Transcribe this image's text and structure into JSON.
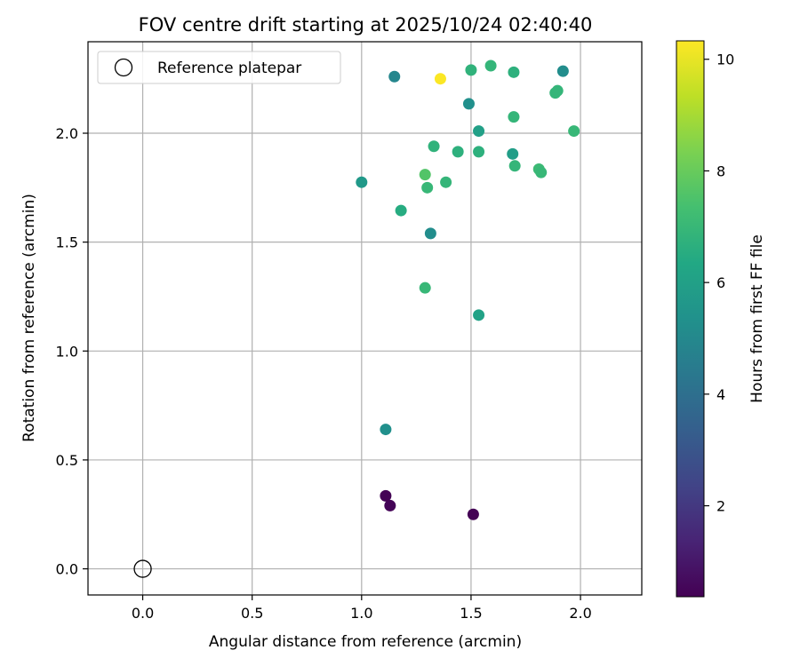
{
  "chart_data": {
    "type": "scatter",
    "title": "FOV centre drift starting at 2025/10/24 02:40:40",
    "xlabel": "Angular distance from reference (arcmin)",
    "ylabel": "Rotation from reference (arcmin)",
    "xlim": [
      -0.25,
      2.28
    ],
    "ylim": [
      -0.12,
      2.42
    ],
    "xticks": [
      0.0,
      0.5,
      1.0,
      1.5,
      2.0
    ],
    "xtick_labels": [
      "0.0",
      "0.5",
      "1.0",
      "1.5",
      "2.0"
    ],
    "yticks": [
      0.0,
      0.5,
      1.0,
      1.5,
      2.0
    ],
    "ytick_labels": [
      "0.0",
      "0.5",
      "1.0",
      "1.5",
      "2.0"
    ],
    "grid": true,
    "legend": {
      "position": "top-left",
      "entries": [
        {
          "label": "Reference platepar",
          "marker": "open-circle"
        }
      ]
    },
    "reference_point": {
      "x": 0.0,
      "y": 0.0
    },
    "colorbar": {
      "label": "Hours from first FF file",
      "colormap": "viridis",
      "range": [
        0.37,
        10.33
      ],
      "ticks": [
        2,
        4,
        6,
        8,
        10
      ],
      "tick_labels": [
        "2",
        "4",
        "6",
        "8",
        "10"
      ]
    },
    "points": [
      {
        "x": 1.11,
        "y": 0.335,
        "hours": 0.4
      },
      {
        "x": 1.13,
        "y": 0.29,
        "hours": 0.45
      },
      {
        "x": 1.51,
        "y": 0.25,
        "hours": 0.4
      },
      {
        "x": 1.11,
        "y": 0.64,
        "hours": 5.3
      },
      {
        "x": 1.0,
        "y": 1.775,
        "hours": 5.7
      },
      {
        "x": 1.15,
        "y": 2.26,
        "hours": 4.9
      },
      {
        "x": 1.18,
        "y": 1.645,
        "hours": 6.5
      },
      {
        "x": 1.29,
        "y": 1.81,
        "hours": 7.6
      },
      {
        "x": 1.29,
        "y": 1.29,
        "hours": 7.0
      },
      {
        "x": 1.3,
        "y": 1.75,
        "hours": 7.0
      },
      {
        "x": 1.315,
        "y": 1.54,
        "hours": 5.2
      },
      {
        "x": 1.33,
        "y": 1.94,
        "hours": 6.8
      },
      {
        "x": 1.36,
        "y": 2.25,
        "hours": 10.3
      },
      {
        "x": 1.385,
        "y": 1.775,
        "hours": 6.9
      },
      {
        "x": 1.44,
        "y": 1.915,
        "hours": 6.7
      },
      {
        "x": 1.49,
        "y": 2.135,
        "hours": 5.3
      },
      {
        "x": 1.5,
        "y": 2.29,
        "hours": 6.8
      },
      {
        "x": 1.535,
        "y": 1.915,
        "hours": 6.7
      },
      {
        "x": 1.535,
        "y": 2.01,
        "hours": 6.0
      },
      {
        "x": 1.535,
        "y": 1.165,
        "hours": 6.1
      },
      {
        "x": 1.59,
        "y": 2.31,
        "hours": 6.9
      },
      {
        "x": 1.69,
        "y": 1.905,
        "hours": 5.9
      },
      {
        "x": 1.695,
        "y": 2.28,
        "hours": 6.7
      },
      {
        "x": 1.695,
        "y": 2.075,
        "hours": 6.9
      },
      {
        "x": 1.7,
        "y": 1.85,
        "hours": 6.9
      },
      {
        "x": 1.81,
        "y": 1.835,
        "hours": 7.1
      },
      {
        "x": 1.82,
        "y": 1.82,
        "hours": 7.0
      },
      {
        "x": 1.885,
        "y": 2.185,
        "hours": 6.9
      },
      {
        "x": 1.895,
        "y": 2.195,
        "hours": 6.9
      },
      {
        "x": 1.92,
        "y": 2.285,
        "hours": 5.2
      },
      {
        "x": 1.97,
        "y": 2.01,
        "hours": 7.0
      }
    ]
  }
}
